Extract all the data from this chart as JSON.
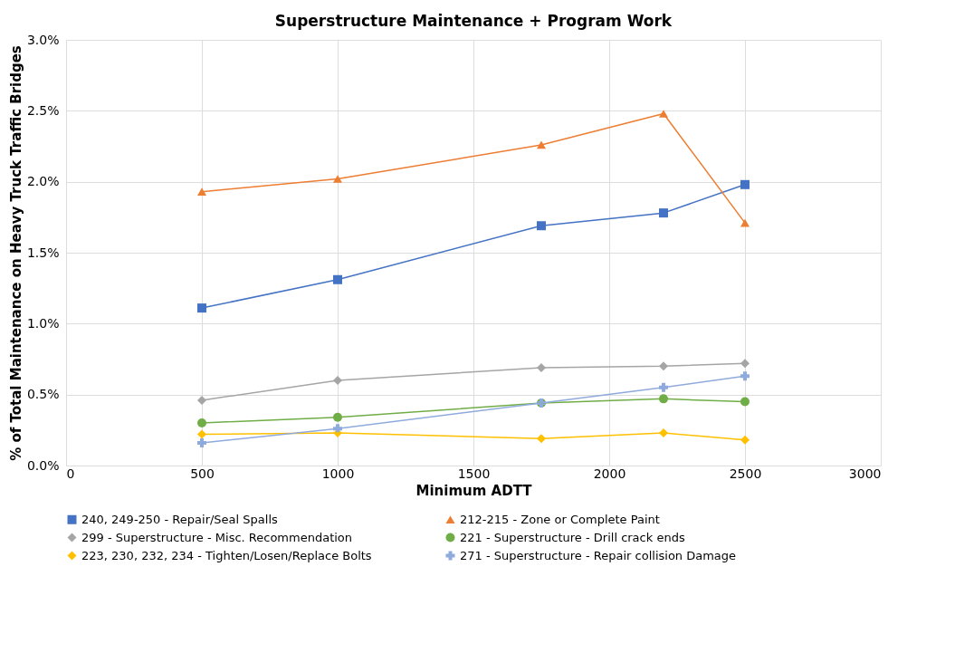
{
  "chart_data": {
    "type": "line",
    "title": "Superstructure  Maintenance + Program Work",
    "xlabel": "Minimum ADTT",
    "ylabel": "% of Total Maintenance on Heavy Truck Traffic Bridges",
    "x": [
      500,
      1000,
      1750,
      2200,
      2500
    ],
    "xlim": [
      0,
      3000
    ],
    "xticks": [
      0,
      500,
      1000,
      1500,
      2000,
      2500,
      3000
    ],
    "ylim": [
      0,
      3.0
    ],
    "yticks": [
      {
        "value": 0,
        "label": "0.0%"
      },
      {
        "value": 0.5,
        "label": "0.5%"
      },
      {
        "value": 1.0,
        "label": "1.0%"
      },
      {
        "value": 1.5,
        "label": "1.5%"
      },
      {
        "value": 2.0,
        "label": "2.0%"
      },
      {
        "value": 2.5,
        "label": "2.5%"
      },
      {
        "value": 3.0,
        "label": "3.0%"
      }
    ],
    "grid": true,
    "legend": "bottom",
    "line_style": "solid",
    "series": [
      {
        "name": "240, 249-250 - Repair/Seal Spalls",
        "color": "#4472c4",
        "marker": "square",
        "values": [
          1.11,
          1.31,
          1.69,
          1.78,
          1.98
        ]
      },
      {
        "name": "212-215 - Zone or Complete Paint",
        "color": "#ed7d31",
        "marker": "triangle",
        "values": [
          1.93,
          2.02,
          2.26,
          2.48,
          1.71
        ]
      },
      {
        "name": "299 - Superstructure - Misc. Recommendation",
        "color": "#a5a5a5",
        "marker": "diamond",
        "values": [
          0.46,
          0.6,
          0.69,
          0.7,
          0.72
        ]
      },
      {
        "name": "221 - Superstructure - Drill crack ends",
        "color": "#70ad47",
        "marker": "circle",
        "values": [
          0.3,
          0.34,
          0.44,
          0.47,
          0.45
        ]
      },
      {
        "name": "223, 230, 232, 234 - Tighten/Losen/Replace Bolts",
        "color": "#ffc000",
        "marker": "diamond",
        "values": [
          0.22,
          0.23,
          0.19,
          0.23,
          0.18
        ]
      },
      {
        "name": "271 - Superstructure - Repair collision Damage",
        "color": "#8faadc",
        "marker": "cross",
        "values": [
          0.16,
          0.26,
          0.44,
          0.55,
          0.63
        ]
      }
    ]
  }
}
